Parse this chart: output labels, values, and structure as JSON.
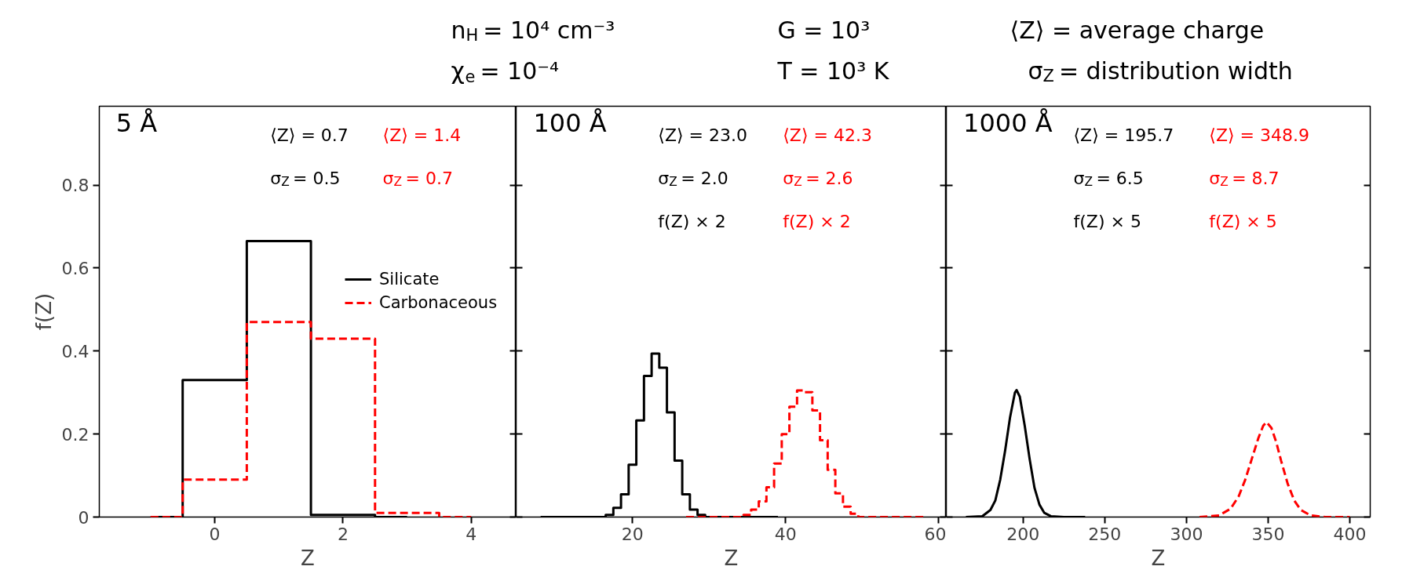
{
  "chart_data": [
    {
      "type": "step",
      "xlabel": "Z",
      "ylabel": "f(Z)",
      "xlim": [
        -1.8,
        4.7
      ],
      "xticks": [
        0,
        2,
        4
      ],
      "ylim": [
        0,
        0.99
      ],
      "yticks": [
        0,
        0.2,
        0.4,
        0.6,
        0.8
      ],
      "legend": "right",
      "annotations": [
        "5 Å",
        "⟨Z⟩ = 0.7",
        "⟨Z⟩ = 1.4",
        "σ$_{Z}$ = 0.5",
        "σ$_{Z}$ = 0.7"
      ],
      "series": [
        {
          "name": "Silicate",
          "color": "#000000",
          "line_style": "solid",
          "x": [
            -1,
            0,
            1,
            2,
            3
          ],
          "values": [
            0,
            0.33,
            0.665,
            0.005,
            0
          ]
        },
        {
          "name": "Carbonaceous",
          "color": "#ff0000",
          "line_style": "dashed",
          "x": [
            -1,
            0,
            1,
            2,
            3,
            4
          ],
          "values": [
            0,
            0.09,
            0.47,
            0.43,
            0.01,
            0
          ]
        }
      ]
    },
    {
      "type": "step",
      "xlabel": "Z",
      "xlim": [
        4.8,
        61
      ],
      "xticks": [
        20,
        40,
        60
      ],
      "ylim": [
        0,
        0.99
      ],
      "yticks": [
        0,
        0.2,
        0.4,
        0.6,
        0.8
      ],
      "tick_labels": "x",
      "annotations": [
        "100 Å",
        "⟨Z⟩ = 23.0",
        "⟨Z⟩ = 42.3",
        "σ$_{Z}$ = 2.0",
        "σ$_{Z}$ = 2.6",
        "f(Z) × 2",
        "f(Z) × 2"
      ],
      "series": [
        {
          "color": "#000000",
          "line_style": "solid",
          "x": [
            8,
            9,
            10,
            11,
            12,
            13,
            14,
            15,
            16,
            17,
            18,
            19,
            20,
            21,
            22,
            23,
            24,
            25,
            26,
            27,
            28,
            29,
            30,
            31,
            32,
            33,
            34,
            35,
            36,
            37,
            38,
            39
          ],
          "values": [
            0,
            0,
            0,
            0,
            0,
            0,
            0,
            0,
            0,
            0.005,
            0.022,
            0.055,
            0.126,
            0.233,
            0.34,
            0.394,
            0.36,
            0.252,
            0.136,
            0.055,
            0.018,
            0.005,
            0,
            0,
            0,
            0,
            0,
            0,
            0,
            0,
            0,
            0
          ]
        },
        {
          "color": "#ff0000",
          "line_style": "dashed",
          "x": [
            27,
            28,
            29,
            30,
            31,
            32,
            33,
            34,
            35,
            36,
            37,
            38,
            39,
            40,
            41,
            42,
            43,
            44,
            45,
            46,
            47,
            48,
            49,
            50,
            51,
            52,
            53,
            54,
            55,
            56,
            57,
            58
          ],
          "values": [
            0,
            0,
            0,
            0,
            0,
            0,
            0,
            0,
            0.005,
            0.018,
            0.038,
            0.072,
            0.129,
            0.2,
            0.266,
            0.305,
            0.301,
            0.257,
            0.185,
            0.114,
            0.057,
            0.025,
            0.008,
            0,
            0,
            0,
            0,
            0,
            0,
            0,
            0,
            0
          ]
        }
      ]
    },
    {
      "type": "line",
      "xlabel": "Z",
      "xlim": [
        153,
        412.5
      ],
      "xticks": [
        200,
        250,
        300,
        350,
        400
      ],
      "ylim": [
        0,
        0.99
      ],
      "yticks": [
        0,
        0.2,
        0.4,
        0.6,
        0.8
      ],
      "tick_labels": "x",
      "annotations": [
        "1000 Å",
        "⟨Z⟩ = 195.7",
        "⟨Z⟩ = 348.9",
        "σ$_{Z}$ = 6.5",
        "σ$_{Z}$ = 8.7",
        "f(Z) × 5",
        "f(Z) × 5"
      ],
      "series": [
        {
          "color": "#000000",
          "line_style": "solid",
          "x": [
            165,
            175,
            180,
            183,
            186,
            189,
            192,
            195,
            196,
            198,
            201,
            204,
            207,
            210,
            213,
            217,
            225,
            238
          ],
          "values": [
            0,
            0.002,
            0.017,
            0.04,
            0.09,
            0.16,
            0.24,
            0.3,
            0.306,
            0.29,
            0.22,
            0.14,
            0.07,
            0.03,
            0.01,
            0.002,
            0,
            0
          ]
        },
        {
          "color": "#ff0000",
          "line_style": "dashed",
          "x": [
            308,
            320,
            327,
            332,
            336,
            340,
            344,
            347,
            349,
            352,
            355,
            358,
            362,
            366,
            370,
            376,
            385,
            400
          ],
          "values": [
            0,
            0.004,
            0.02,
            0.05,
            0.09,
            0.14,
            0.19,
            0.22,
            0.229,
            0.215,
            0.18,
            0.135,
            0.08,
            0.04,
            0.017,
            0.004,
            0,
            0
          ]
        }
      ]
    },
    {
      "type": "other",
      "annotations": [
        "n$_{H}$ = 10⁴ cm⁻³",
        "χ$_{e}$ = 10⁻⁴",
        "G = 10³",
        "T = 10³ K",
        "⟨Z⟩ = average charge",
        "σ$_{Z}$ = distribution width"
      ]
    }
  ]
}
